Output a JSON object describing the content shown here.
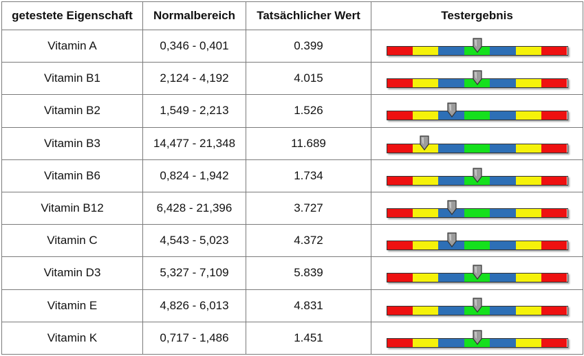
{
  "headers": {
    "property": "getestete Eigenschaft",
    "range": "Normalbereich",
    "value": "Tatsächlicher Wert",
    "result": "Testergebnis"
  },
  "colors": {
    "red": "#ee1111",
    "yellow": "#f5f20a",
    "blue": "#2d6fb6",
    "green": "#15e01d",
    "marker": "#9c9c9c"
  },
  "rows": [
    {
      "name": "Vitamin A",
      "range": "0,346 - 0,401",
      "value": "0.399",
      "marker": 0.5
    },
    {
      "name": "Vitamin B1",
      "range": "2,124 - 4,192",
      "value": "4.015",
      "marker": 0.5
    },
    {
      "name": "Vitamin B2",
      "range": "1,549 - 2,213",
      "value": "1.526",
      "marker": 0.36
    },
    {
      "name": "Vitamin B3",
      "range": "14,477 - 21,348",
      "value": "11.689",
      "marker": 0.21
    },
    {
      "name": "Vitamin B6",
      "range": "0,824 - 1,942",
      "value": "1.734",
      "marker": 0.5
    },
    {
      "name": "Vitamin B12",
      "range": "6,428 - 21,396",
      "value": "3.727",
      "marker": 0.36
    },
    {
      "name": "Vitamin C",
      "range": "4,543 - 5,023",
      "value": "4.372",
      "marker": 0.36
    },
    {
      "name": "Vitamin D3",
      "range": "5,327 - 7,109",
      "value": "5.839",
      "marker": 0.5
    },
    {
      "name": "Vitamin E",
      "range": "4,826 - 6,013",
      "value": "4.831",
      "marker": 0.5
    },
    {
      "name": "Vitamin K",
      "range": "0,717 - 1,486",
      "value": "1.451",
      "marker": 0.5
    }
  ]
}
